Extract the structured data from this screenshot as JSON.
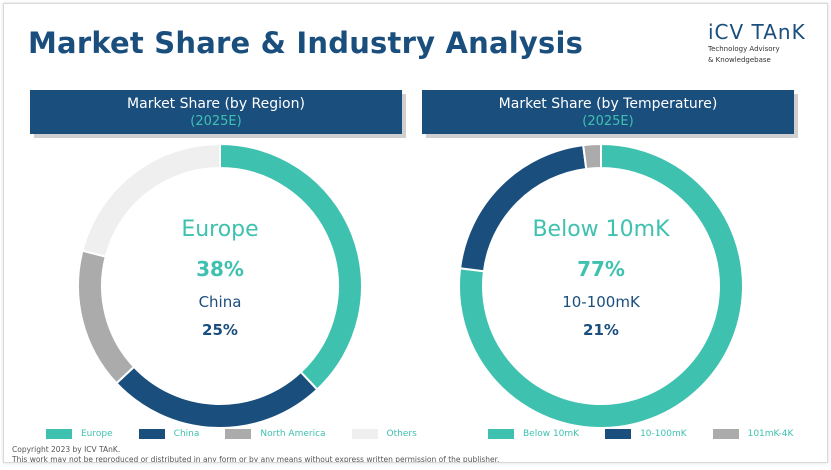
{
  "title": "Market Share & Industry Analysis",
  "logo": {
    "main": "iCV TAnK",
    "sub1": "Technology Advisory",
    "sub2": "& Knowledgebase"
  },
  "chart_data": [
    {
      "type": "pie",
      "title": "Market Share (by Region)",
      "subtitle": "(2025E)",
      "categories": [
        "Europe",
        "China",
        "North America",
        "Others"
      ],
      "values": [
        38,
        25,
        16,
        21
      ],
      "colors": [
        "#3fc1b0",
        "#1a4e7d",
        "#ababab",
        "#efefef"
      ],
      "legend": "bottom",
      "center": {
        "label": "Europe",
        "value": "38%",
        "label2": "China",
        "value2": "25%"
      }
    },
    {
      "type": "pie",
      "title": "Market Share (by Temperature)",
      "subtitle": "(2025E)",
      "categories": [
        "Below 10mK",
        "10-100mK",
        "101mK-4K"
      ],
      "values": [
        77,
        21,
        2
      ],
      "colors": [
        "#3fc1b0",
        "#1a4e7d",
        "#ababab"
      ],
      "legend": "bottom",
      "center": {
        "label": "Below 10mK",
        "value": "77%",
        "label2": "10-100mK",
        "value2": "21%"
      }
    }
  ],
  "footer": {
    "line1": "Copyright  2023 by ICV TAnK.",
    "line2": "This work may not be reproduced or distributed in any form or by any means without express written permission of the publisher."
  }
}
